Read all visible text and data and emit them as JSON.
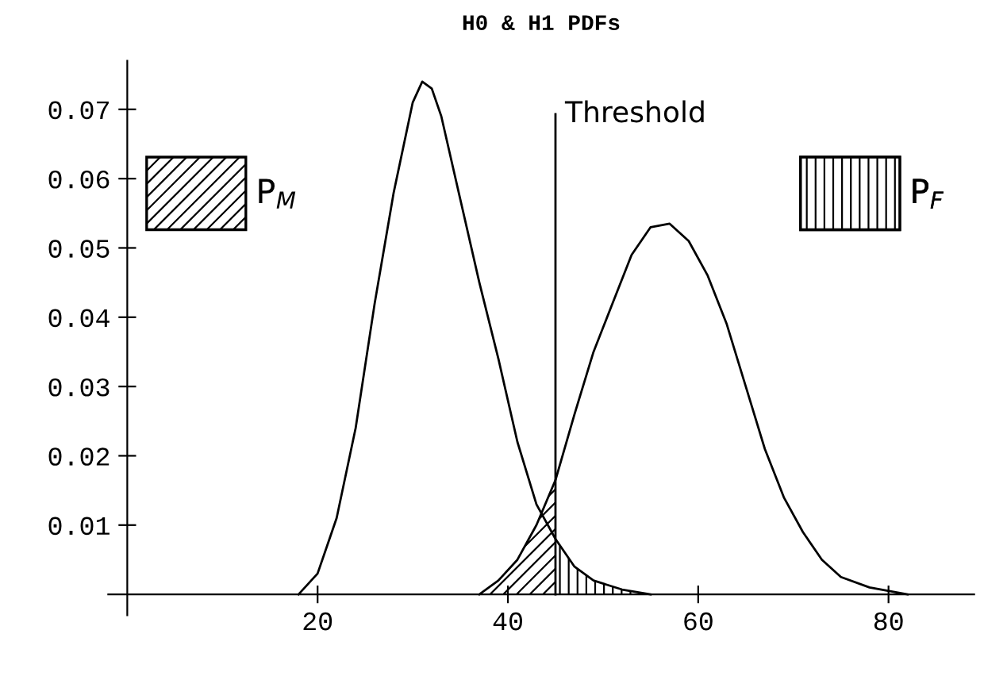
{
  "chart_data": {
    "type": "line",
    "title": "H0 & H1 PDFs",
    "series": [
      {
        "color": "#000000",
        "x": [
          18,
          20,
          21,
          22,
          24,
          26,
          27,
          28,
          30,
          31,
          32,
          33,
          35,
          37,
          39,
          41,
          43,
          45,
          47,
          49,
          52,
          55
        ],
        "values": [
          0,
          0.003,
          0.007,
          0.011,
          0.024,
          0.042,
          0.05,
          0.058,
          0.071,
          0.074,
          0.073,
          0.069,
          0.057,
          0.045,
          0.034,
          0.022,
          0.013,
          0.008,
          0.004,
          0.002,
          0.0007,
          0
        ]
      },
      {
        "color": "#000000",
        "x": [
          37,
          39,
          41,
          43,
          45,
          47,
          49,
          51,
          53,
          55,
          57,
          59,
          61,
          63,
          65,
          67,
          69,
          71,
          73,
          75,
          78,
          82
        ],
        "values": [
          0,
          0.002,
          0.005,
          0.01,
          0.0165,
          0.026,
          0.035,
          0.042,
          0.049,
          0.053,
          0.0535,
          0.051,
          0.046,
          0.039,
          0.03,
          0.021,
          0.014,
          0.009,
          0.005,
          0.0025,
          0.001,
          0
        ]
      },
      {
        "type": "area",
        "name": "P$_{M}$",
        "color": "#000000",
        "x": [
          37,
          39,
          41,
          43,
          45
        ],
        "values": [
          0,
          0.002,
          0.005,
          0.01,
          0.0165
        ]
      },
      {
        "type": "area",
        "name": "P$_{F}$",
        "color": "#000000",
        "x": [
          45,
          47,
          49,
          52,
          55
        ],
        "values": [
          0.008,
          0.004,
          0.002,
          0.0007,
          0
        ]
      }
    ],
    "xlim": [
      -2,
      89
    ],
    "xticks": [
      20,
      40,
      60,
      80
    ],
    "ylim": [
      -0.003,
      0.077
    ],
    "yticks": [
      0.01,
      0.02,
      0.03,
      0.04,
      0.05,
      0.06,
      0.07
    ],
    "ref_lines": [
      {
        "axis": "x",
        "value": 45,
        "label": "Threshold",
        "color": "#000000"
      }
    ],
    "grid": false,
    "legend": "top",
    "marker": "none",
    "line_style": "solid"
  }
}
